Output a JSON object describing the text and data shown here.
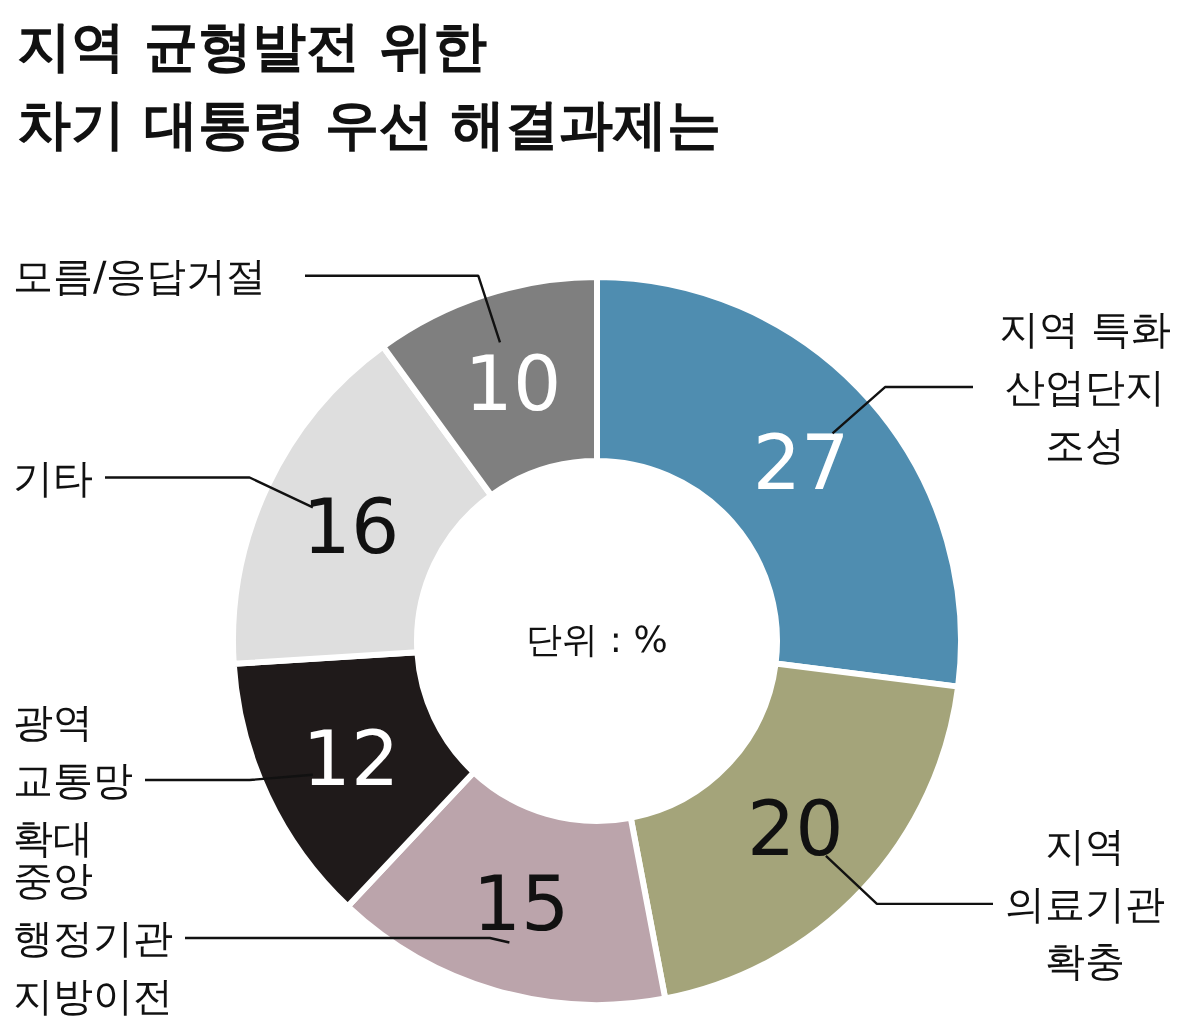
{
  "chart_data": {
    "type": "donut",
    "title": "지역 균형발전 위한\n차기 대통령 우선 해결과제는",
    "categories": [
      "지역 특화\n산업단지\n조성",
      "지역\n의료기관\n확충",
      "중앙\n행정기관\n지방이전",
      "광역\n교통망\n확대",
      "기타",
      "모름/응답거절"
    ],
    "values": [
      27,
      20,
      15,
      12,
      16,
      10
    ],
    "colors": [
      "#4f8db0",
      "#a4a47a",
      "#bba4ab",
      "#1f1a1a",
      "#dedede",
      "#7f7f7f"
    ],
    "data_labels": true,
    "annotations": [
      "단위 : %"
    ]
  }
}
